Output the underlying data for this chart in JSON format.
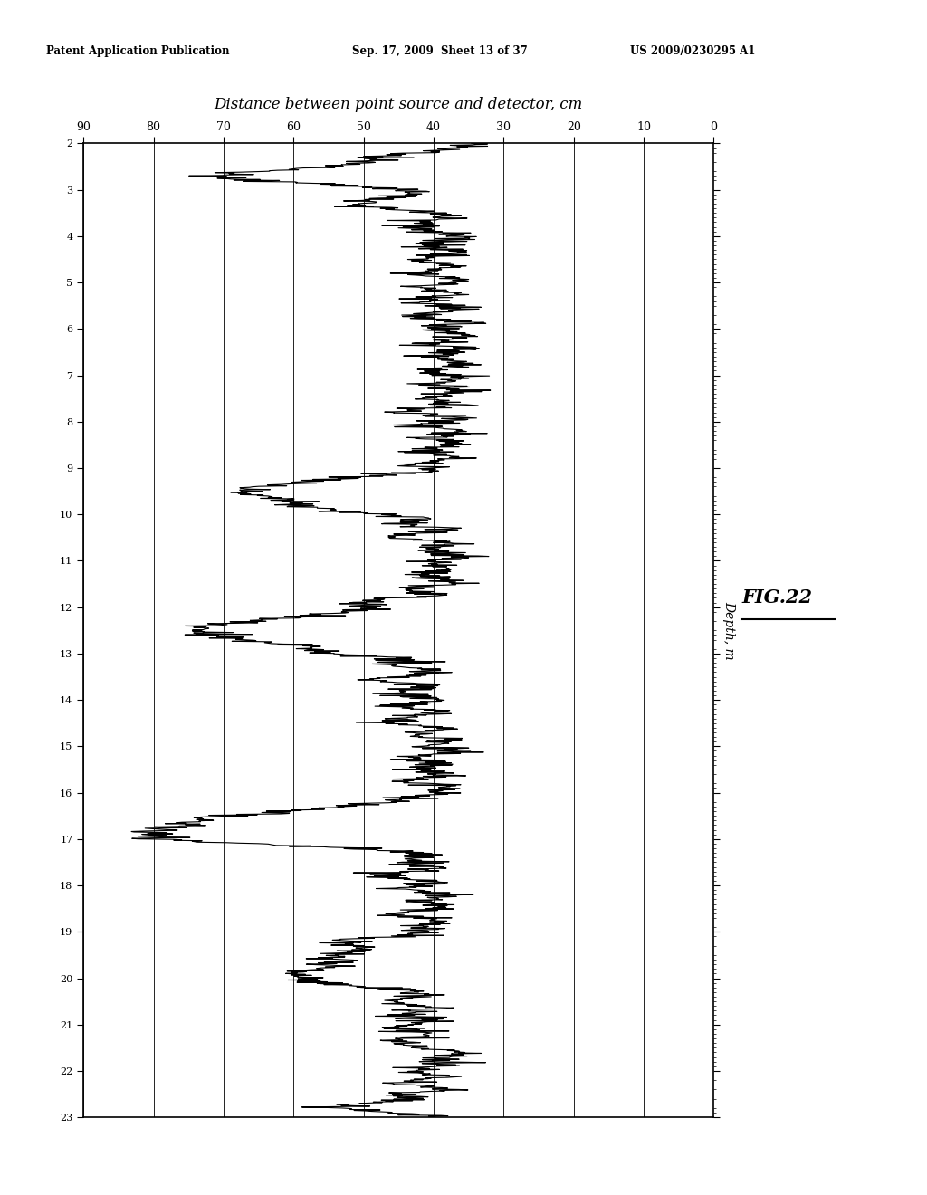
{
  "title_text": "Distance between point source and detector, cm",
  "ylabel": "Depth, m",
  "fig_label": "FIG.22",
  "patent_header_left": "Patent Application Publication",
  "patent_header_mid": "Sep. 17, 2009  Sheet 13 of 37",
  "patent_header_right": "US 2009/0230295 A1",
  "x_ticks": [
    0,
    10,
    20,
    30,
    40,
    50,
    60,
    70,
    80,
    90
  ],
  "y_min": 2,
  "y_max": 23,
  "x_min": 0,
  "x_max": 90,
  "background_color": "#ffffff",
  "line_color": "#000000"
}
